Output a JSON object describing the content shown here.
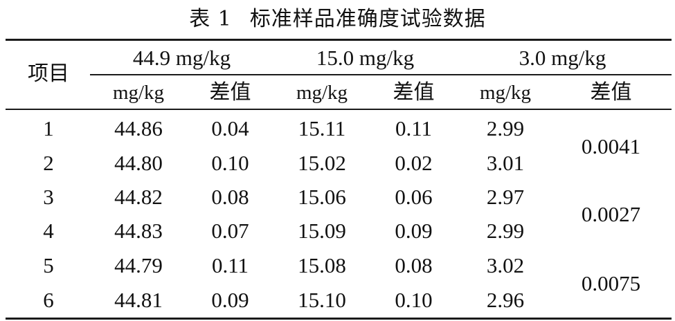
{
  "caption": {
    "label": "表 1",
    "title": "标准样品准确度试验数据"
  },
  "table": {
    "row_header": "项目",
    "groups": [
      "44.9 mg/kg",
      "15.0 mg/kg",
      "3.0 mg/kg"
    ],
    "subheaders": [
      "mg/kg",
      "差值",
      "mg/kg",
      "差值",
      "mg/kg",
      "差值"
    ],
    "rows": [
      {
        "item": "1",
        "v1": "44.86",
        "d1": "0.04",
        "v2": "15.11",
        "d2": "0.11",
        "v3": "2.99"
      },
      {
        "item": "2",
        "v1": "44.80",
        "d1": "0.10",
        "v2": "15.02",
        "d2": "0.02",
        "v3": "3.01"
      },
      {
        "item": "3",
        "v1": "44.82",
        "d1": "0.08",
        "v2": "15.06",
        "d2": "0.06",
        "v3": "2.97"
      },
      {
        "item": "4",
        "v1": "44.83",
        "d1": "0.07",
        "v2": "15.09",
        "d2": "0.09",
        "v3": "2.99"
      },
      {
        "item": "5",
        "v1": "44.79",
        "d1": "0.11",
        "v2": "15.08",
        "d2": "0.08",
        "v3": "3.02"
      },
      {
        "item": "6",
        "v1": "44.81",
        "d1": "0.09",
        "v2": "15.10",
        "d2": "0.10",
        "v3": "2.96"
      }
    ],
    "merged_diff_3": [
      "0.0041",
      "0.0027",
      "0.0075"
    ]
  }
}
